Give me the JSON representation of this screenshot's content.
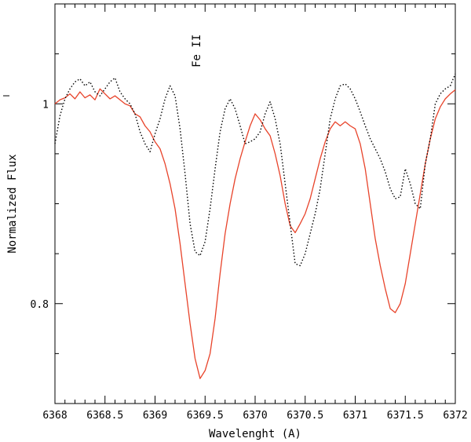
{
  "chart_data": {
    "type": "line",
    "xlabel": "Wavelenght (A)",
    "ylabel": "Normalized Flux",
    "xlim": [
      6368,
      6372
    ],
    "ylim": [
      0.7,
      1.1
    ],
    "x_ticks": [
      "6368",
      "6368.5",
      "6369",
      "6369.5",
      "6370",
      "6370.5",
      "6371",
      "6371.5",
      "6372"
    ],
    "y_ticks": [
      "0.8",
      "1"
    ],
    "annotations": [
      {
        "text": "Fe II",
        "x": 6369.45,
        "y": 1.053
      }
    ],
    "grid": false,
    "series": [
      {
        "style": "solid",
        "color": "#e8432a",
        "points": [
          [
            6368.0,
            1.0
          ],
          [
            6368.05,
            1.004
          ],
          [
            6368.1,
            1.006
          ],
          [
            6368.15,
            1.01
          ],
          [
            6368.2,
            1.005
          ],
          [
            6368.25,
            1.012
          ],
          [
            6368.3,
            1.006
          ],
          [
            6368.35,
            1.009
          ],
          [
            6368.4,
            1.004
          ],
          [
            6368.45,
            1.015
          ],
          [
            6368.5,
            1.01
          ],
          [
            6368.55,
            1.005
          ],
          [
            6368.6,
            1.008
          ],
          [
            6368.65,
            1.004
          ],
          [
            6368.7,
            1.0
          ],
          [
            6368.75,
            0.998
          ],
          [
            6368.8,
            0.99
          ],
          [
            6368.85,
            0.987
          ],
          [
            6368.9,
            0.978
          ],
          [
            6368.95,
            0.972
          ],
          [
            6369.0,
            0.962
          ],
          [
            6369.05,
            0.955
          ],
          [
            6369.1,
            0.94
          ],
          [
            6369.15,
            0.92
          ],
          [
            6369.2,
            0.895
          ],
          [
            6369.25,
            0.86
          ],
          [
            6369.3,
            0.82
          ],
          [
            6369.35,
            0.78
          ],
          [
            6369.4,
            0.745
          ],
          [
            6369.45,
            0.725
          ],
          [
            6369.5,
            0.733
          ],
          [
            6369.55,
            0.75
          ],
          [
            6369.6,
            0.785
          ],
          [
            6369.65,
            0.83
          ],
          [
            6369.7,
            0.87
          ],
          [
            6369.75,
            0.9
          ],
          [
            6369.8,
            0.925
          ],
          [
            6369.85,
            0.945
          ],
          [
            6369.9,
            0.962
          ],
          [
            6369.95,
            0.978
          ],
          [
            6370.0,
            0.99
          ],
          [
            6370.05,
            0.984
          ],
          [
            6370.1,
            0.975
          ],
          [
            6370.15,
            0.968
          ],
          [
            6370.2,
            0.95
          ],
          [
            6370.25,
            0.928
          ],
          [
            6370.3,
            0.9
          ],
          [
            6370.35,
            0.878
          ],
          [
            6370.4,
            0.871
          ],
          [
            6370.45,
            0.88
          ],
          [
            6370.5,
            0.89
          ],
          [
            6370.55,
            0.905
          ],
          [
            6370.6,
            0.925
          ],
          [
            6370.65,
            0.945
          ],
          [
            6370.7,
            0.962
          ],
          [
            6370.75,
            0.975
          ],
          [
            6370.8,
            0.982
          ],
          [
            6370.85,
            0.978
          ],
          [
            6370.9,
            0.982
          ],
          [
            6370.95,
            0.978
          ],
          [
            6371.0,
            0.975
          ],
          [
            6371.05,
            0.96
          ],
          [
            6371.1,
            0.935
          ],
          [
            6371.15,
            0.9
          ],
          [
            6371.2,
            0.865
          ],
          [
            6371.25,
            0.838
          ],
          [
            6371.3,
            0.815
          ],
          [
            6371.35,
            0.795
          ],
          [
            6371.4,
            0.791
          ],
          [
            6371.45,
            0.8
          ],
          [
            6371.5,
            0.82
          ],
          [
            6371.55,
            0.85
          ],
          [
            6371.6,
            0.88
          ],
          [
            6371.65,
            0.91
          ],
          [
            6371.7,
            0.94
          ],
          [
            6371.75,
            0.965
          ],
          [
            6371.8,
            0.985
          ],
          [
            6371.85,
            0.997
          ],
          [
            6371.9,
            1.005
          ],
          [
            6371.95,
            1.01
          ],
          [
            6372.0,
            1.014
          ]
        ]
      },
      {
        "style": "dotted",
        "color": "#000000",
        "points": [
          [
            6368.0,
            0.96
          ],
          [
            6368.05,
            0.988
          ],
          [
            6368.1,
            1.005
          ],
          [
            6368.15,
            1.015
          ],
          [
            6368.2,
            1.022
          ],
          [
            6368.25,
            1.025
          ],
          [
            6368.3,
            1.018
          ],
          [
            6368.35,
            1.022
          ],
          [
            6368.4,
            1.012
          ],
          [
            6368.45,
            1.008
          ],
          [
            6368.5,
            1.015
          ],
          [
            6368.55,
            1.022
          ],
          [
            6368.6,
            1.026
          ],
          [
            6368.65,
            1.012
          ],
          [
            6368.7,
            1.005
          ],
          [
            6368.75,
            1.0
          ],
          [
            6368.8,
            0.99
          ],
          [
            6368.85,
            0.972
          ],
          [
            6368.9,
            0.96
          ],
          [
            6368.95,
            0.952
          ],
          [
            6369.0,
            0.97
          ],
          [
            6369.05,
            0.985
          ],
          [
            6369.1,
            1.005
          ],
          [
            6369.15,
            1.018
          ],
          [
            6369.2,
            1.008
          ],
          [
            6369.25,
            0.975
          ],
          [
            6369.3,
            0.93
          ],
          [
            6369.35,
            0.88
          ],
          [
            6369.4,
            0.852
          ],
          [
            6369.45,
            0.848
          ],
          [
            6369.5,
            0.862
          ],
          [
            6369.55,
            0.895
          ],
          [
            6369.6,
            0.935
          ],
          [
            6369.65,
            0.972
          ],
          [
            6369.7,
            0.995
          ],
          [
            6369.75,
            1.005
          ],
          [
            6369.8,
            0.995
          ],
          [
            6369.85,
            0.978
          ],
          [
            6369.9,
            0.96
          ],
          [
            6369.95,
            0.962
          ],
          [
            6370.0,
            0.965
          ],
          [
            6370.05,
            0.972
          ],
          [
            6370.1,
            0.99
          ],
          [
            6370.15,
            1.002
          ],
          [
            6370.2,
            0.985
          ],
          [
            6370.25,
            0.96
          ],
          [
            6370.3,
            0.92
          ],
          [
            6370.35,
            0.88
          ],
          [
            6370.4,
            0.84
          ],
          [
            6370.45,
            0.838
          ],
          [
            6370.5,
            0.85
          ],
          [
            6370.55,
            0.87
          ],
          [
            6370.6,
            0.89
          ],
          [
            6370.65,
            0.915
          ],
          [
            6370.7,
            0.95
          ],
          [
            6370.75,
            0.985
          ],
          [
            6370.8,
            1.005
          ],
          [
            6370.85,
            1.018
          ],
          [
            6370.9,
            1.02
          ],
          [
            6370.95,
            1.015
          ],
          [
            6371.0,
            1.005
          ],
          [
            6371.05,
            0.992
          ],
          [
            6371.1,
            0.978
          ],
          [
            6371.15,
            0.965
          ],
          [
            6371.2,
            0.955
          ],
          [
            6371.25,
            0.945
          ],
          [
            6371.3,
            0.932
          ],
          [
            6371.35,
            0.915
          ],
          [
            6371.4,
            0.905
          ],
          [
            6371.45,
            0.907
          ],
          [
            6371.5,
            0.935
          ],
          [
            6371.55,
            0.92
          ],
          [
            6371.6,
            0.9
          ],
          [
            6371.65,
            0.895
          ],
          [
            6371.7,
            0.94
          ],
          [
            6371.75,
            0.965
          ],
          [
            6371.8,
            1.0
          ],
          [
            6371.85,
            1.01
          ],
          [
            6371.9,
            1.015
          ],
          [
            6371.95,
            1.018
          ],
          [
            6372.0,
            1.03
          ]
        ]
      }
    ]
  }
}
